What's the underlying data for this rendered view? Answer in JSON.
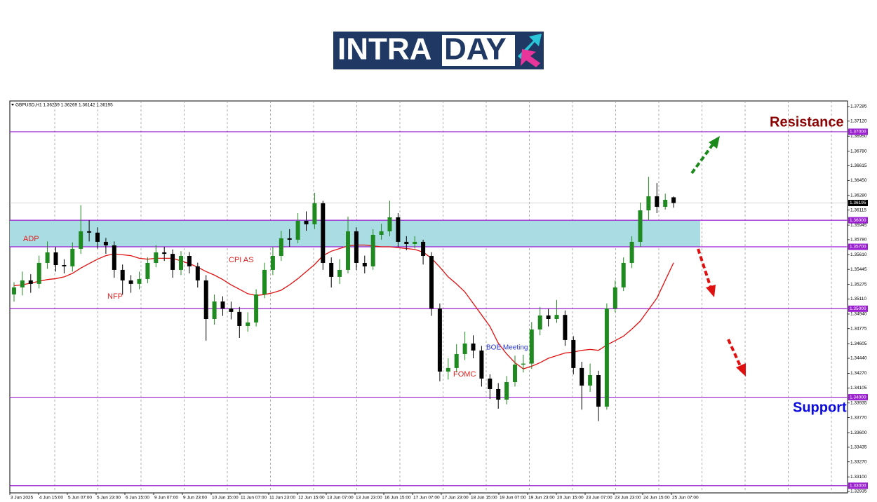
{
  "logo": {
    "text1": "INTRA",
    "text2": "DAY"
  },
  "chart_data": {
    "type": "candlestick",
    "title": "GBPUSD,H1  1.36259 1.36269 1.36142 1.36195",
    "colors": {
      "up": "#1f8a1f",
      "down": "#000000"
    },
    "ohlc": [
      [
        1.35162,
        1.353,
        1.3508,
        1.35241
      ],
      [
        1.35241,
        1.3542,
        1.3515,
        1.3532
      ],
      [
        1.3532,
        1.3539,
        1.3518,
        1.35281
      ],
      [
        1.35281,
        1.356,
        1.3523,
        1.35518
      ],
      [
        1.35518,
        1.3576,
        1.3545,
        1.35637
      ],
      [
        1.35637,
        1.357,
        1.3542,
        1.35494
      ],
      [
        1.35494,
        1.3556,
        1.354,
        1.35479
      ],
      [
        1.35479,
        1.3575,
        1.3542,
        1.35677
      ],
      [
        1.35677,
        1.3617,
        1.3562,
        1.35875
      ],
      [
        1.35875,
        1.36,
        1.3576,
        1.3586
      ],
      [
        1.3586,
        1.3592,
        1.3568,
        1.35756
      ],
      [
        1.35756,
        1.358,
        1.3562,
        1.35716
      ],
      [
        1.35716,
        1.3576,
        1.3535,
        1.35439
      ],
      [
        1.35439,
        1.355,
        1.3516,
        1.3532
      ],
      [
        1.3532,
        1.3538,
        1.3518,
        1.35281
      ],
      [
        1.35281,
        1.3542,
        1.3522,
        1.35336
      ],
      [
        1.35336,
        1.3558,
        1.3529,
        1.35518
      ],
      [
        1.35518,
        1.3572,
        1.3547,
        1.35637
      ],
      [
        1.35637,
        1.357,
        1.3554,
        1.3562
      ],
      [
        1.3562,
        1.3567,
        1.3535,
        1.35439
      ],
      [
        1.35439,
        1.3565,
        1.3538,
        1.35597
      ],
      [
        1.35597,
        1.3564,
        1.354,
        1.35479
      ],
      [
        1.35479,
        1.3552,
        1.3524,
        1.3532
      ],
      [
        1.3532,
        1.3538,
        1.3464,
        1.34884
      ],
      [
        1.34884,
        1.3516,
        1.3482,
        1.35082
      ],
      [
        1.35082,
        1.3514,
        1.3492,
        1.35003
      ],
      [
        1.35003,
        1.3508,
        1.3488,
        1.34964
      ],
      [
        1.34964,
        1.3502,
        1.3467,
        1.34805
      ],
      [
        1.34805,
        1.3496,
        1.3474,
        1.34845
      ],
      [
        1.34845,
        1.3522,
        1.348,
        1.35162
      ],
      [
        1.35162,
        1.3552,
        1.3512,
        1.35439
      ],
      [
        1.35439,
        1.357,
        1.3538,
        1.35597
      ],
      [
        1.35597,
        1.3588,
        1.3554,
        1.35796
      ],
      [
        1.35796,
        1.359,
        1.357,
        1.3578
      ],
      [
        1.3578,
        1.3608,
        1.3574,
        1.35994
      ],
      [
        1.35994,
        1.361,
        1.3588,
        1.35954
      ],
      [
        1.35954,
        1.3631,
        1.359,
        1.36192
      ],
      [
        1.36192,
        1.3622,
        1.3544,
        1.35518
      ],
      [
        1.35518,
        1.3558,
        1.3524,
        1.3536
      ],
      [
        1.3536,
        1.3556,
        1.3528,
        1.35439
      ],
      [
        1.35439,
        1.3604,
        1.354,
        1.35875
      ],
      [
        1.35875,
        1.3592,
        1.3544,
        1.35518
      ],
      [
        1.35518,
        1.356,
        1.354,
        1.35479
      ],
      [
        1.35479,
        1.359,
        1.3544,
        1.35835
      ],
      [
        1.35835,
        1.3596,
        1.3578,
        1.35875
      ],
      [
        1.35875,
        1.3622,
        1.3582,
        1.36033
      ],
      [
        1.36033,
        1.3608,
        1.357,
        1.35756
      ],
      [
        1.35756,
        1.3582,
        1.3566,
        1.35732
      ],
      [
        1.35732,
        1.3582,
        1.3568,
        1.35756
      ],
      [
        1.35756,
        1.3578,
        1.355,
        1.35597
      ],
      [
        1.35597,
        1.3564,
        1.3492,
        1.35003
      ],
      [
        1.35003,
        1.3506,
        1.3418,
        1.3429
      ],
      [
        1.3429,
        1.3444,
        1.342,
        1.3433
      ],
      [
        1.3433,
        1.346,
        1.3428,
        1.34488
      ],
      [
        1.34488,
        1.3474,
        1.3442,
        1.34607
      ],
      [
        1.34607,
        1.347,
        1.3444,
        1.34528
      ],
      [
        1.34528,
        1.3458,
        1.3412,
        1.34211
      ],
      [
        1.34211,
        1.3426,
        1.3398,
        1.34092
      ],
      [
        1.34092,
        1.3416,
        1.3387,
        1.33973
      ],
      [
        1.33973,
        1.3424,
        1.3392,
        1.34171
      ],
      [
        1.34171,
        1.3447,
        1.3412,
        1.34369
      ],
      [
        1.34369,
        1.3448,
        1.3428,
        1.3438
      ],
      [
        1.3438,
        1.3485,
        1.3432,
        1.34766
      ],
      [
        1.34766,
        1.3502,
        1.347,
        1.34924
      ],
      [
        1.34924,
        1.35,
        1.348,
        1.34884
      ],
      [
        1.34884,
        1.351,
        1.3484,
        1.3493
      ],
      [
        1.3493,
        1.3498,
        1.3458,
        1.34647
      ],
      [
        1.34647,
        1.3469,
        1.3426,
        1.3433
      ],
      [
        1.3433,
        1.344,
        1.3386,
        1.34132
      ],
      [
        1.34132,
        1.3438,
        1.3406,
        1.3425
      ],
      [
        1.3425,
        1.343,
        1.3373,
        1.33894
      ],
      [
        1.33894,
        1.3506,
        1.3386,
        1.35003
      ],
      [
        1.35003,
        1.3532,
        1.3496,
        1.35241
      ],
      [
        1.35241,
        1.3558,
        1.352,
        1.35518
      ],
      [
        1.35518,
        1.3582,
        1.3546,
        1.35756
      ],
      [
        1.35756,
        1.362,
        1.357,
        1.36112
      ],
      [
        1.36112,
        1.3649,
        1.36,
        1.36271
      ],
      [
        1.36271,
        1.3642,
        1.3608,
        1.36152
      ],
      [
        1.36152,
        1.363,
        1.3612,
        1.36231
      ],
      [
        1.36259,
        1.36269,
        1.36142,
        1.36195
      ]
    ],
    "ma": {
      "color": "#e01010",
      "values": [
        1.3526,
        1.3527,
        1.3529,
        1.3531,
        1.3533,
        1.3534,
        1.3536,
        1.354,
        1.3546,
        1.3551,
        1.3556,
        1.356,
        1.3562,
        1.3561,
        1.356,
        1.3557,
        1.3556,
        1.3557,
        1.3557,
        1.3557,
        1.3554,
        1.3551,
        1.3547,
        1.3542,
        1.3538,
        1.3533,
        1.3527,
        1.3522,
        1.3517,
        1.3515,
        1.3516,
        1.3518,
        1.3521,
        1.3527,
        1.3534,
        1.3542,
        1.355,
        1.356,
        1.3565,
        1.3568,
        1.3571,
        1.3572,
        1.3572,
        1.3571,
        1.357,
        1.357,
        1.3569,
        1.3568,
        1.3567,
        1.3564,
        1.3557,
        1.3547,
        1.3536,
        1.3528,
        1.3519,
        1.3506,
        1.3493,
        1.348,
        1.3461,
        1.3449,
        1.3439,
        1.3432,
        1.3435,
        1.3439,
        1.3444,
        1.3447,
        1.345,
        1.3451,
        1.3453,
        1.3454,
        1.3453,
        1.3459,
        1.3464,
        1.3469,
        1.3477,
        1.3486,
        1.3499,
        1.3512,
        1.3532,
        1.3552
      ]
    },
    "ylim": [
      1.32919,
      1.37348
    ],
    "yticks": [
      1.37285,
      {
        "value": 1.3712,
        "label": "1.37120"
      },
      {
        "value": 1.3695,
        "label": "1.36950"
      },
      {
        "value": 1.3678,
        "label": "1.36780"
      },
      1.36615,
      {
        "value": 1.3645,
        "label": "1.36450"
      },
      {
        "value": 1.3628,
        "label": "1.36280"
      },
      1.36115,
      1.35945,
      {
        "value": 1.3578,
        "label": "1.35780"
      },
      {
        "value": 1.3561,
        "label": "1.35610"
      },
      1.35445,
      1.35275,
      {
        "value": 1.3511,
        "label": "1.35110"
      },
      {
        "value": 1.3494,
        "label": "1.34940"
      },
      1.34775,
      1.34605,
      {
        "value": 1.3444,
        "label": "1.34440"
      },
      {
        "value": 1.3427,
        "label": "1.34270"
      },
      1.34105,
      1.33935,
      {
        "value": 1.3377,
        "label": "1.33770"
      },
      {
        "value": 1.336,
        "label": "1.33600"
      },
      1.33435,
      {
        "value": 1.3327,
        "label": "1.33270"
      },
      {
        "value": 1.331,
        "label": "1.33100"
      },
      1.32935
    ],
    "levels": [
      {
        "value": 1.37,
        "label": "1.37000"
      },
      {
        "value": 1.36,
        "label": "1.36000"
      },
      {
        "value": 1.357,
        "label": "1.35700"
      },
      {
        "value": 1.35,
        "label": "1.35000"
      },
      {
        "value": 1.34,
        "label": "1.34000"
      },
      {
        "value": 1.33,
        "label": "1.33000"
      }
    ],
    "level_color": "#9a1fd0",
    "zone": [
      1.357,
      1.36
    ],
    "zone_color": "#a9dde3",
    "last_price": 1.36195,
    "x_labels": [
      "3 Jun 2025",
      "4 Jun 15:00",
      "5 Jun 07:00",
      "5 Jun 23:00",
      "6 Jun 15:00",
      "9 Jun 07:00",
      "9 Jun 23:00",
      "10 Jun 15:00",
      "11 Jun 07:00",
      "11 Jun 23:00",
      "12 Jun 15:00",
      "13 Jun 07:00",
      "13 Jun 23:00",
      "16 Jun 15:00",
      "17 Jun 07:00",
      "17 Jun 23:00",
      "18 Jun 15:00",
      "19 Jun 07:00",
      "19 Jun 23:00",
      "20 Jun 15:00",
      "23 Jun 07:00",
      "23 Jun 23:00",
      "24 Jun 15:00",
      "25 Jun 07:00"
    ],
    "annotations": [
      {
        "text": "ADP",
        "color": "#e02020"
      },
      {
        "text": "NFP",
        "color": "#e02020"
      },
      {
        "text": "CPI AS",
        "color": "#e02020"
      },
      {
        "text": "FOMC",
        "color": "#e02020"
      },
      {
        "text": "BOE Meeting",
        "color": "#2233cc"
      },
      {
        "text": "Resistance",
        "color": "#8b0000"
      },
      {
        "text": "Support",
        "color": "#0a0adc"
      }
    ]
  }
}
